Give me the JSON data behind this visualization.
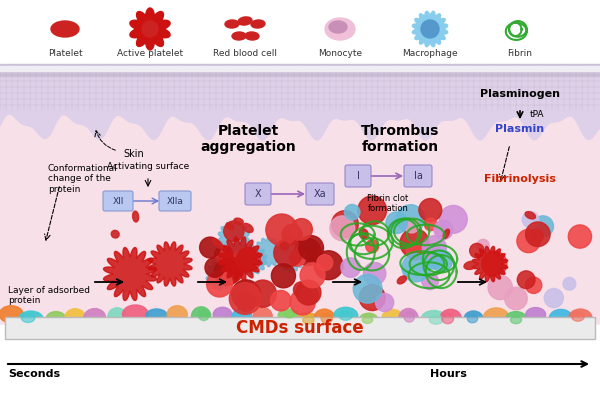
{
  "legend_items": [
    "Platelet",
    "Active platelet",
    "Red blood cell",
    "Monocyte",
    "Macrophage",
    "Fibrin"
  ],
  "bottom_label": "CMDs surface",
  "time_left": "Seconds",
  "time_right": "Hours",
  "skin_label": "Skin",
  "label_conformational": "Conformational\nchange of the\nprotein",
  "label_activating": "Activating surface",
  "label_layer": "Layer of adsorbed\nprotein",
  "label_platelet_agg": "Platelet\naggregation",
  "label_thrombus": "Thrombus\nformation",
  "label_plasminogen": "Plasminogen",
  "label_tpa": "tPA",
  "label_plasmin": "Plasmin",
  "label_fibrinolysis": "Fibrinolysis",
  "label_XII": "XII",
  "label_XIIa": "XIIa",
  "label_X": "X",
  "label_Xa": "Xa",
  "label_I": "I",
  "label_Ia": "Ia",
  "label_fibrin_clot": "Fibrin clot\nformation",
  "skin_top_color": "#e8e0ea",
  "skin_grid_color": "#c8b8cc",
  "skin_wave_color": "#ddd0e0",
  "tissue_color": "#f5d8e0",
  "surface_bar_color": "#e8e8e8",
  "surface_bar_edge": "#cccccc",
  "cmd_text_color": "#cc2200",
  "plasmin_color": "#3344cc",
  "fibrinolysis_color": "#cc2200"
}
